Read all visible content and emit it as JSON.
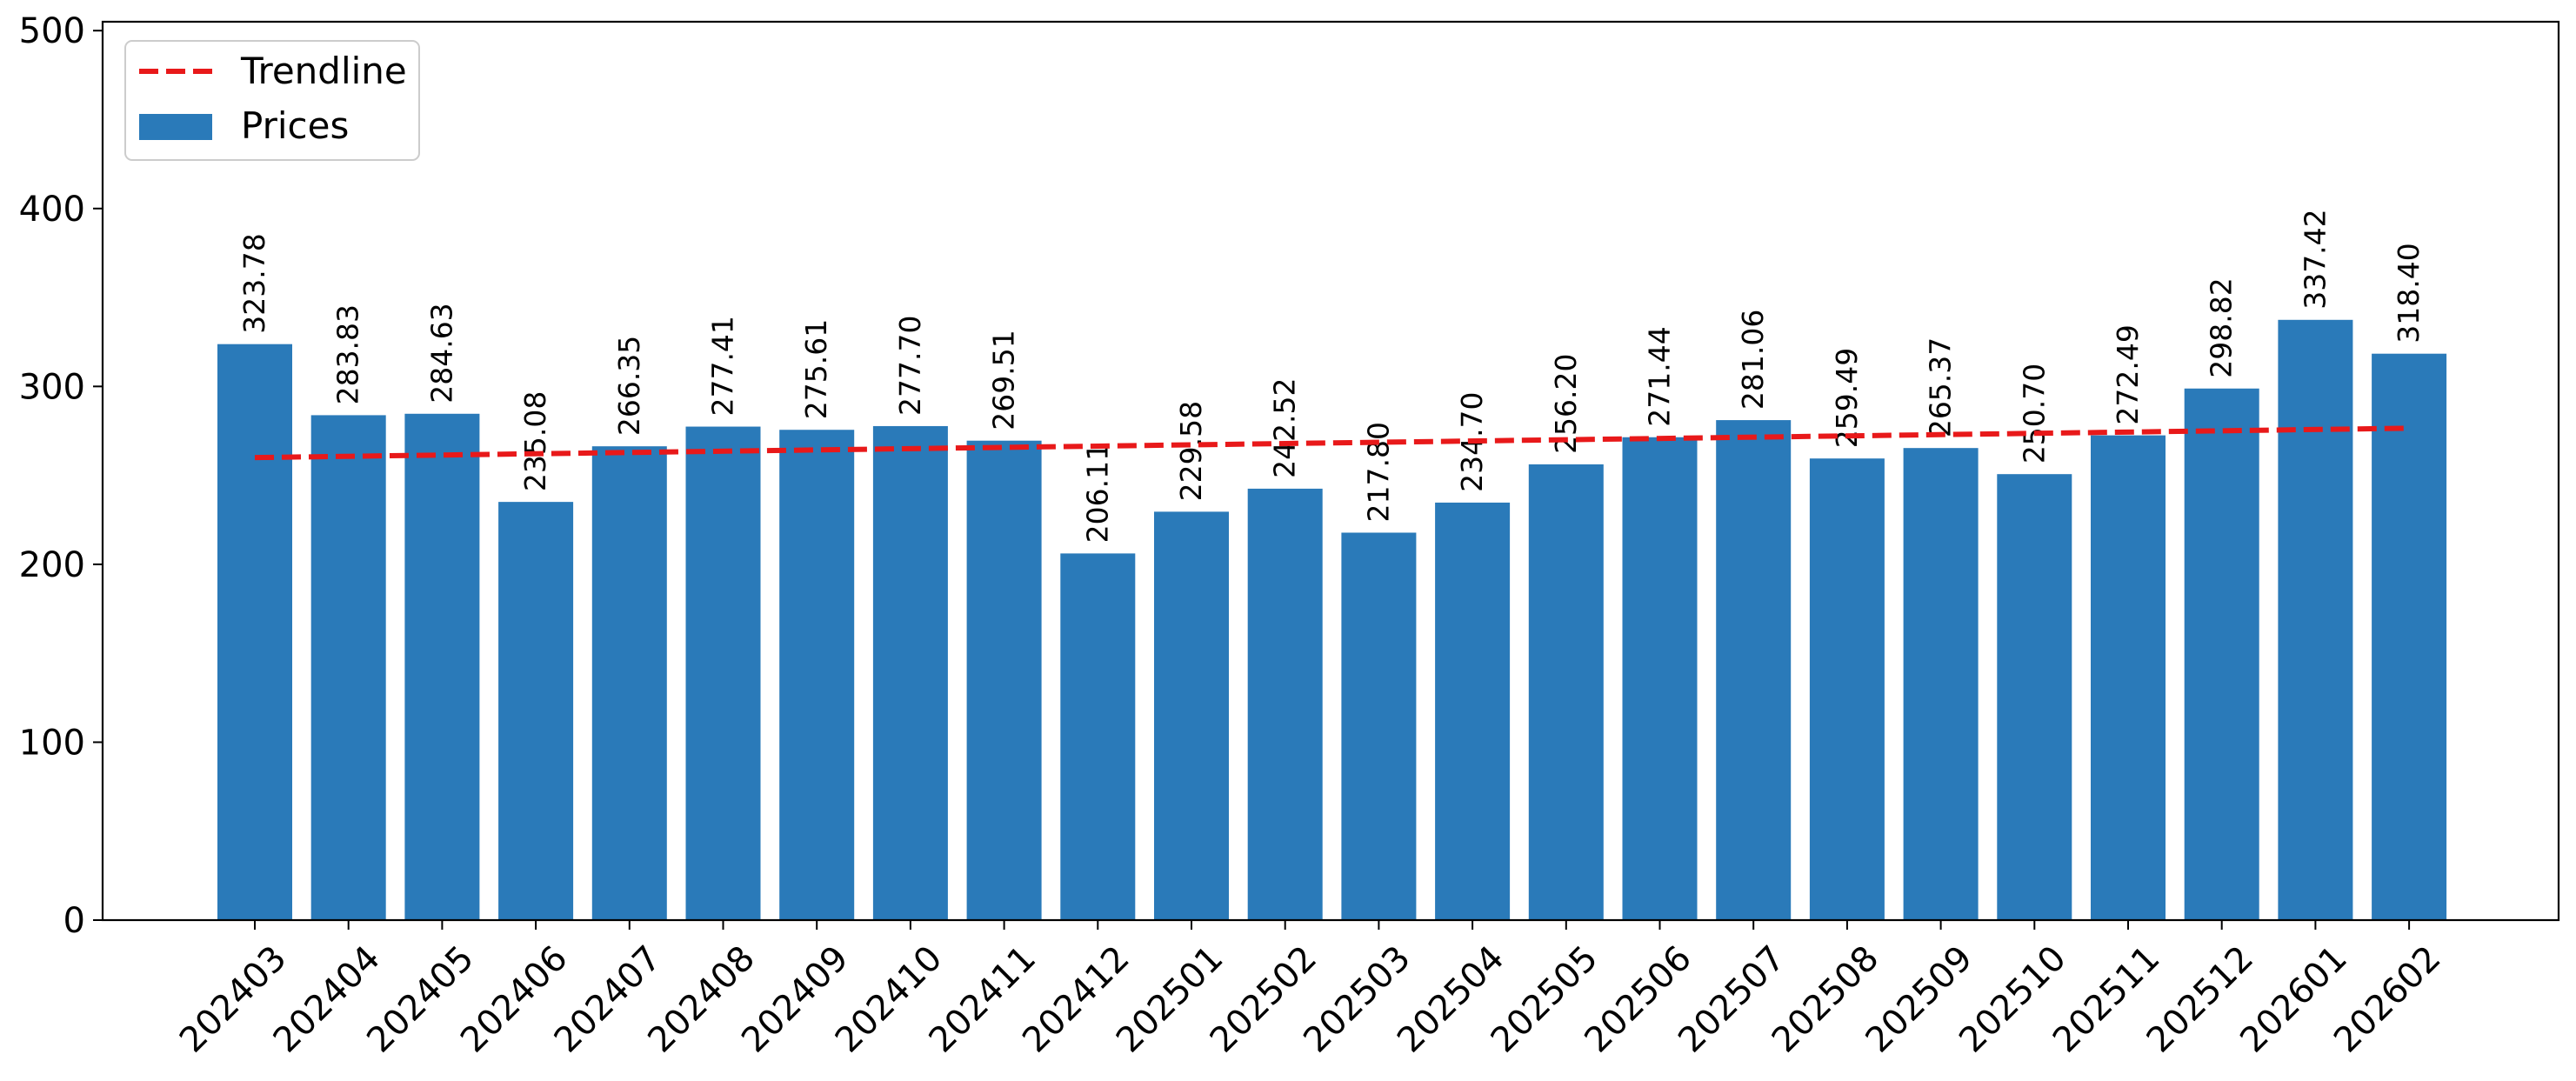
{
  "chart_data": {
    "type": "bar",
    "title": "",
    "xlabel": "",
    "ylabel": "",
    "categories": [
      "202403",
      "202404",
      "202405",
      "202406",
      "202407",
      "202408",
      "202409",
      "202410",
      "202411",
      "202412",
      "202501",
      "202502",
      "202503",
      "202504",
      "202505",
      "202506",
      "202507",
      "202508",
      "202509",
      "202510",
      "202511",
      "202512",
      "202601",
      "202602"
    ],
    "series": [
      {
        "name": "Prices",
        "color": "#2a7ab9",
        "values": [
          323.78,
          283.83,
          284.63,
          235.08,
          266.35,
          277.41,
          275.61,
          277.7,
          269.51,
          206.11,
          229.58,
          242.52,
          217.8,
          234.7,
          256.2,
          271.44,
          281.06,
          259.49,
          265.37,
          250.7,
          272.49,
          298.82,
          337.42,
          318.4
        ],
        "value_labels": [
          "323.78",
          "283.83",
          "284.63",
          "235.08",
          "266.35",
          "277.41",
          "275.61",
          "277.70",
          "269.51",
          "206.11",
          "229.58",
          "242.52",
          "217.80",
          "234.70",
          "256.20",
          "271.44",
          "281.06",
          "259.49",
          "265.37",
          "250.70",
          "272.49",
          "298.82",
          "337.42",
          "318.40"
        ]
      }
    ],
    "trendline": {
      "name": "Trendline",
      "color": "#e8191a",
      "style": "dashed",
      "start": 260.0,
      "end": 276.5
    },
    "ylim": [
      0,
      505
    ],
    "yticks": [
      0,
      100,
      200,
      300,
      400,
      500
    ],
    "ytick_labels": [
      "0",
      "100",
      "200",
      "300",
      "400",
      "500"
    ],
    "grid": false,
    "legend": {
      "position": "top-left",
      "entries": [
        "Trendline",
        "Prices"
      ]
    }
  }
}
